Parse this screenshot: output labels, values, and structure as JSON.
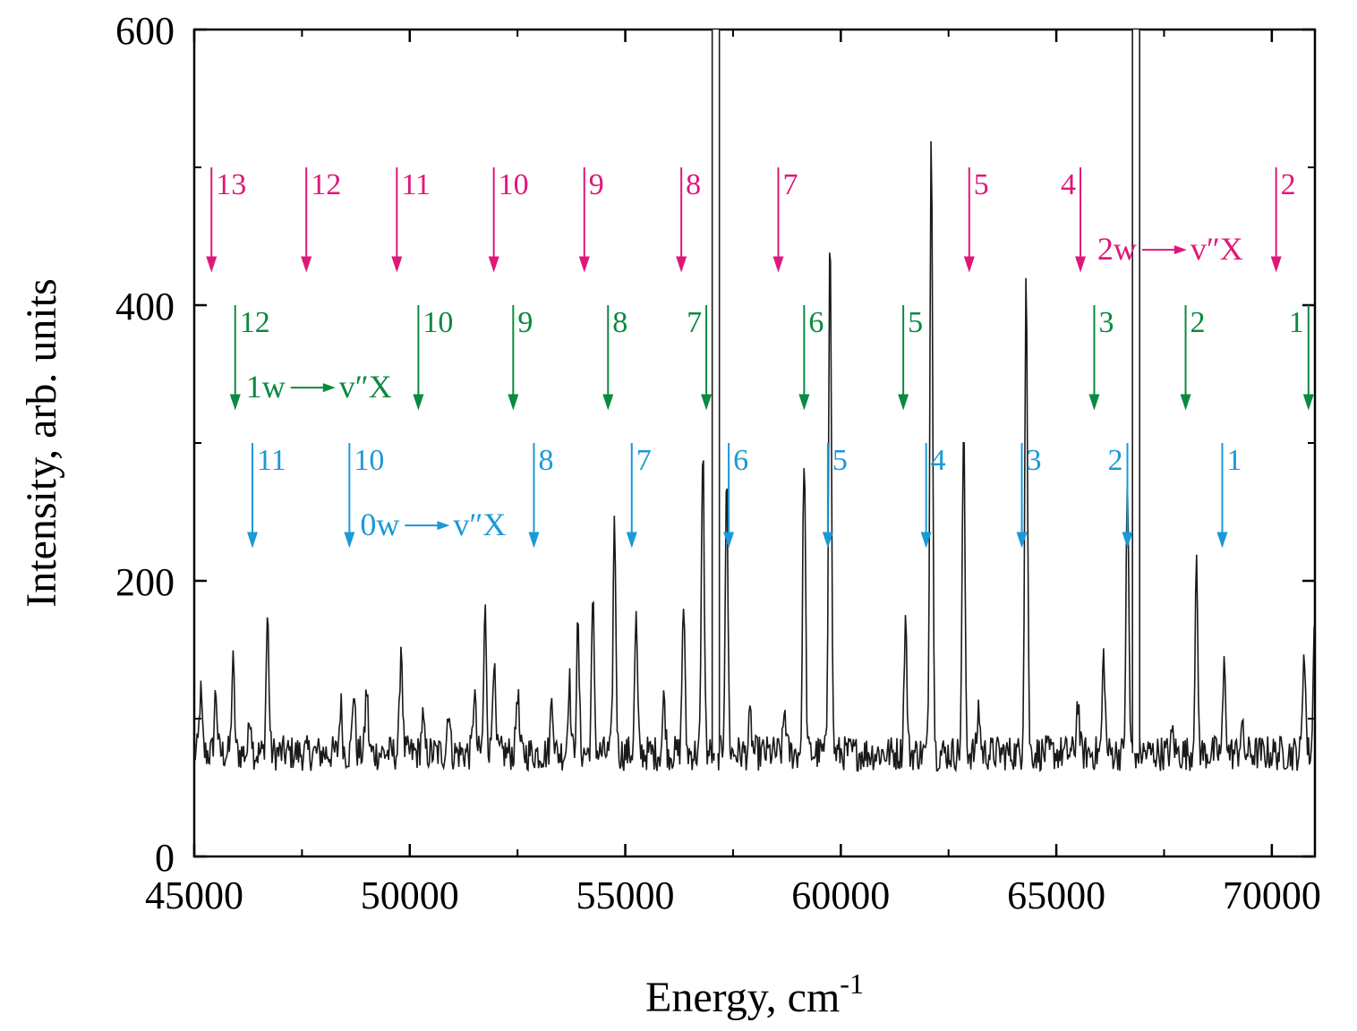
{
  "chart_data": {
    "type": "line",
    "xlabel": "Energy, cm",
    "xlabel_sup": "-1",
    "ylabel": "Intensity, arb. units",
    "xlim": [
      45000,
      71000
    ],
    "ylim": [
      0,
      600
    ],
    "x_ticks": [
      45000,
      50000,
      55000,
      60000,
      65000,
      70000
    ],
    "x_tick_labels": [
      "45000",
      "50000",
      "55000",
      "60000",
      "65000",
      "70000"
    ],
    "y_ticks": [
      0,
      200,
      400,
      600
    ],
    "y_tick_labels": [
      "0",
      "200",
      "400",
      "600"
    ],
    "series_color": "#1a1a1a",
    "baseline": 75,
    "peaks": [
      {
        "x": 45150,
        "y": 118
      },
      {
        "x": 45500,
        "y": 120
      },
      {
        "x": 45900,
        "y": 140
      },
      {
        "x": 46300,
        "y": 105
      },
      {
        "x": 46700,
        "y": 175
      },
      {
        "x": 48400,
        "y": 110
      },
      {
        "x": 48700,
        "y": 122
      },
      {
        "x": 49000,
        "y": 122
      },
      {
        "x": 49800,
        "y": 155
      },
      {
        "x": 50300,
        "y": 100
      },
      {
        "x": 50900,
        "y": 110
      },
      {
        "x": 51500,
        "y": 120
      },
      {
        "x": 51750,
        "y": 178
      },
      {
        "x": 51950,
        "y": 145
      },
      {
        "x": 52500,
        "y": 122
      },
      {
        "x": 53300,
        "y": 118
      },
      {
        "x": 53700,
        "y": 130
      },
      {
        "x": 53900,
        "y": 165
      },
      {
        "x": 54250,
        "y": 182
      },
      {
        "x": 54750,
        "y": 243
      },
      {
        "x": 55250,
        "y": 172
      },
      {
        "x": 55900,
        "y": 115
      },
      {
        "x": 56350,
        "y": 185
      },
      {
        "x": 56800,
        "y": 300
      },
      {
        "x": 57350,
        "y": 275
      },
      {
        "x": 57900,
        "y": 100
      },
      {
        "x": 58700,
        "y": 107
      },
      {
        "x": 59150,
        "y": 295
      },
      {
        "x": 59750,
        "y": 468
      },
      {
        "x": 61500,
        "y": 173
      },
      {
        "x": 62100,
        "y": 537
      },
      {
        "x": 62850,
        "y": 310
      },
      {
        "x": 63200,
        "y": 108
      },
      {
        "x": 64300,
        "y": 425
      },
      {
        "x": 65500,
        "y": 115
      },
      {
        "x": 66100,
        "y": 147
      },
      {
        "x": 66650,
        "y": 268
      },
      {
        "x": 67700,
        "y": 90
      },
      {
        "x": 68250,
        "y": 208
      },
      {
        "x": 68900,
        "y": 140
      },
      {
        "x": 69300,
        "y": 95
      },
      {
        "x": 70750,
        "y": 155
      },
      {
        "x": 71000,
        "y": 195
      }
    ],
    "saturated_lines": [
      57100,
      66850
    ],
    "annotations": [
      {
        "name": "2w-progression",
        "label": "2w",
        "label_tail": "v″X",
        "label_at": {
          "x": 65950,
          "y": 433
        },
        "color": "#e0177a",
        "arrow_top": 500,
        "arrow_bottom": 425,
        "arrows": [
          {
            "x": 45400,
            "n": "13",
            "side": "right"
          },
          {
            "x": 47600,
            "n": "12",
            "side": "right"
          },
          {
            "x": 49700,
            "n": "11",
            "side": "right"
          },
          {
            "x": 51950,
            "n": "10",
            "side": "right"
          },
          {
            "x": 54050,
            "n": "9",
            "side": "right"
          },
          {
            "x": 56300,
            "n": "8",
            "side": "right"
          },
          {
            "x": 58550,
            "n": "7",
            "side": "right"
          },
          {
            "x": 62980,
            "n": "5",
            "side": "right"
          },
          {
            "x": 65560,
            "n": "4",
            "side": "left"
          },
          {
            "x": 70100,
            "n": "2",
            "side": "right"
          }
        ]
      },
      {
        "name": "1w-progression",
        "label": "1w",
        "label_tail": "v″X",
        "label_at": {
          "x": 46200,
          "y": 333
        },
        "color": "#0a8a40",
        "arrow_top": 400,
        "arrow_bottom": 325,
        "arrows": [
          {
            "x": 45950,
            "n": "12",
            "side": "right"
          },
          {
            "x": 50200,
            "n": "10",
            "side": "right"
          },
          {
            "x": 52400,
            "n": "9",
            "side": "right"
          },
          {
            "x": 54600,
            "n": "8",
            "side": "right"
          },
          {
            "x": 56880,
            "n": "7",
            "side": "left"
          },
          {
            "x": 59150,
            "n": "6",
            "side": "right"
          },
          {
            "x": 61450,
            "n": "5",
            "side": "right"
          },
          {
            "x": 65880,
            "n": "3",
            "side": "right"
          },
          {
            "x": 68000,
            "n": "2",
            "side": "right"
          },
          {
            "x": 70850,
            "n": "1",
            "side": "left"
          }
        ]
      },
      {
        "name": "0w-progression",
        "label": "0w",
        "label_tail": "v″X",
        "label_at": {
          "x": 48850,
          "y": 233
        },
        "color": "#1a9ad6",
        "arrow_top": 300,
        "arrow_bottom": 225,
        "arrows": [
          {
            "x": 46350,
            "n": "11",
            "side": "right"
          },
          {
            "x": 48600,
            "n": "10",
            "side": "right"
          },
          {
            "x": 52880,
            "n": "8",
            "side": "right"
          },
          {
            "x": 55150,
            "n": "7",
            "side": "right"
          },
          {
            "x": 57400,
            "n": "6",
            "side": "right"
          },
          {
            "x": 59700,
            "n": "5",
            "side": "right"
          },
          {
            "x": 61980,
            "n": "4",
            "side": "right"
          },
          {
            "x": 64200,
            "n": "3",
            "side": "right"
          },
          {
            "x": 66650,
            "n": "2",
            "side": "left"
          },
          {
            "x": 68850,
            "n": "1",
            "side": "right"
          }
        ]
      }
    ]
  }
}
